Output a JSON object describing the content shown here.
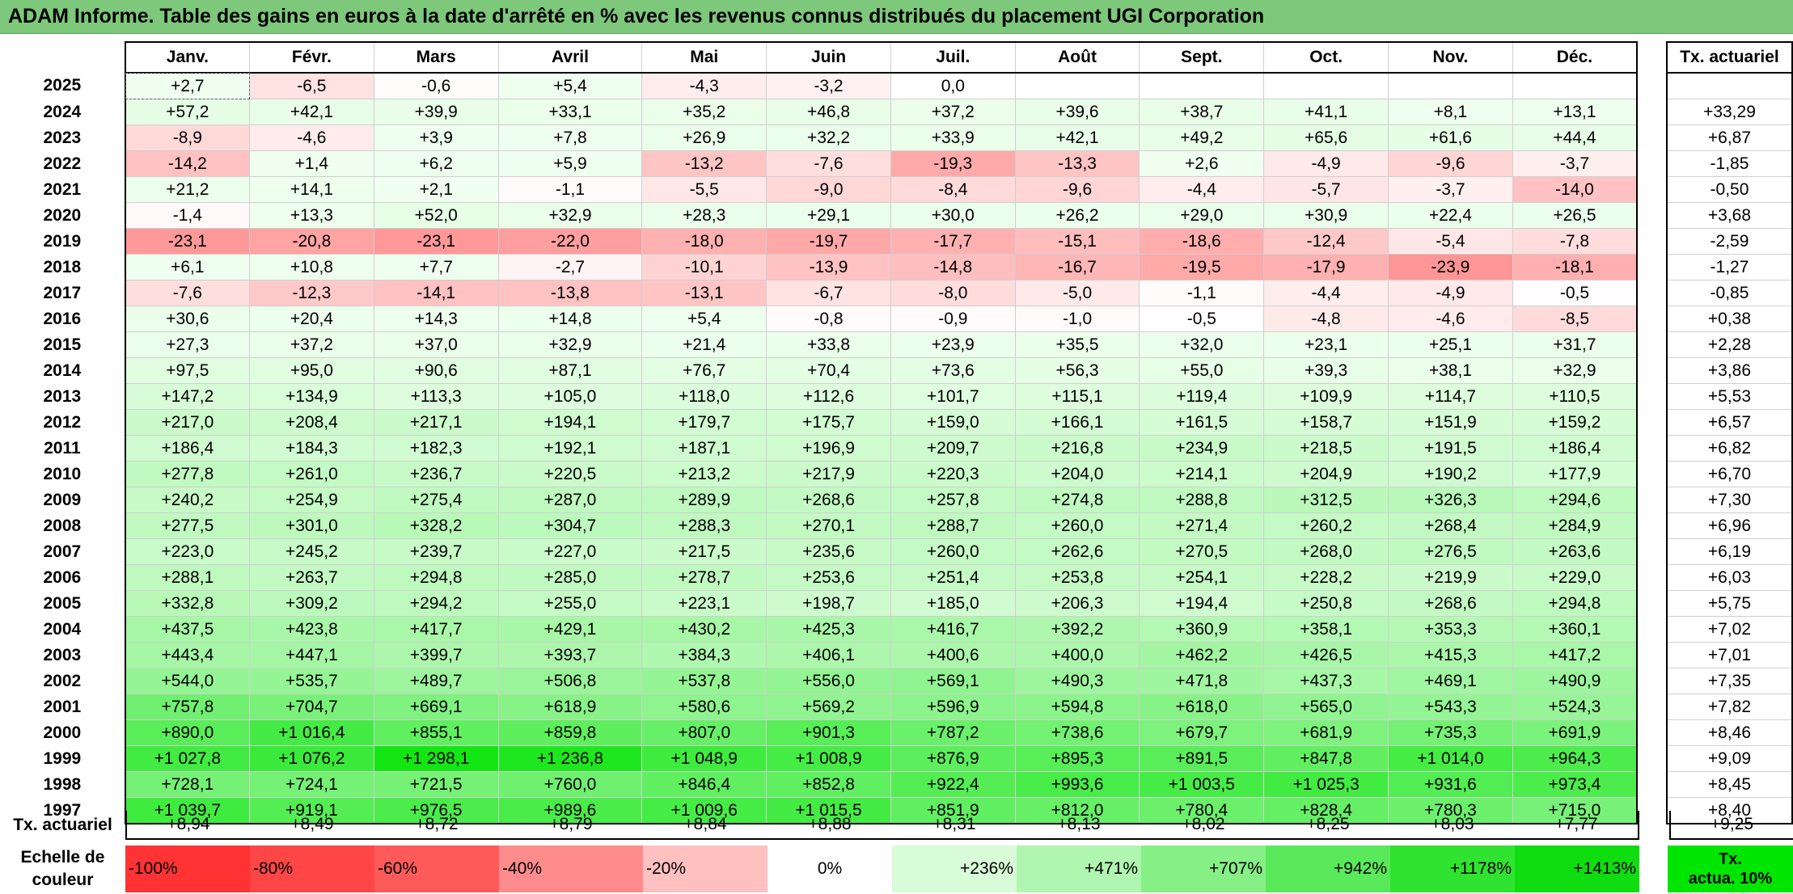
{
  "title": "ADAM Informe. Table des gains en euros à la date d'arrêté en % avec les revenus connus distribués du placement UGI Corporation",
  "months": [
    "Janv.",
    "Févr.",
    "Mars",
    "Avril",
    "Mai",
    "Juin",
    "Juil.",
    "Août",
    "Sept.",
    "Oct.",
    "Nov.",
    "Déc."
  ],
  "actu_header": "Tx. actuariel",
  "footer": {
    "label": "Tx. actuariel",
    "values": [
      "+8,94",
      "+8,49",
      "+8,72",
      "+8,79",
      "+8,84",
      "+8,88",
      "+8,31",
      "+8,13",
      "+8,02",
      "+8,25",
      "+8,03",
      "+7,77"
    ],
    "actu": "+9,25"
  },
  "scale": {
    "label_line1": "Echelle de",
    "label_line2": "couleur",
    "cells": [
      {
        "text": "-100%",
        "color": "#ff3333",
        "align": "left"
      },
      {
        "text": "-80%",
        "color": "#ff4646",
        "align": "left"
      },
      {
        "text": "-60%",
        "color": "#ff5a5a",
        "align": "left"
      },
      {
        "text": "-40%",
        "color": "#ff8c8c",
        "align": "left"
      },
      {
        "text": "-20%",
        "color": "#ffc0c0",
        "align": "left"
      },
      {
        "text": "0%",
        "color": "#ffffff",
        "align": "center"
      },
      {
        "text": "+236%",
        "color": "#d8fbd8",
        "align": "right"
      },
      {
        "text": "+471%",
        "color": "#b0f5b0",
        "align": "right"
      },
      {
        "text": "+707%",
        "color": "#86ef86",
        "align": "right"
      },
      {
        "text": "+942%",
        "color": "#5ae95a",
        "align": "right"
      },
      {
        "text": "+1178%",
        "color": "#30e330",
        "align": "right"
      },
      {
        "text": "+1413%",
        "color": "#10dd10",
        "align": "right"
      }
    ],
    "actu_line1": "Tx.",
    "actu_line2": "actua. 10%"
  },
  "chart_data": {
    "type": "heatmap",
    "title": "ADAM Informe. Table des gains en euros à la date d'arrêté en % avec les revenus connus distribués du placement UGI Corporation",
    "columns": [
      "Janv.",
      "Févr.",
      "Mars",
      "Avril",
      "Mai",
      "Juin",
      "Juil.",
      "Août",
      "Sept.",
      "Oct.",
      "Nov.",
      "Déc."
    ],
    "rows": [
      {
        "year": "2025",
        "values": [
          "+2,7",
          "-6,5",
          "-0,6",
          "+5,4",
          "-4,3",
          "-3,2",
          "0,0",
          "",
          "",
          "",
          "",
          ""
        ],
        "actu": ""
      },
      {
        "year": "2024",
        "values": [
          "+57,2",
          "+42,1",
          "+39,9",
          "+33,1",
          "+35,2",
          "+46,8",
          "+37,2",
          "+39,6",
          "+38,7",
          "+41,1",
          "+8,1",
          "+13,1"
        ],
        "actu": "+33,29"
      },
      {
        "year": "2023",
        "values": [
          "-8,9",
          "-4,6",
          "+3,9",
          "+7,8",
          "+26,9",
          "+32,2",
          "+33,9",
          "+42,1",
          "+49,2",
          "+65,6",
          "+61,6",
          "+44,4"
        ],
        "actu": "+6,87"
      },
      {
        "year": "2022",
        "values": [
          "-14,2",
          "+1,4",
          "+6,2",
          "+5,9",
          "-13,2",
          "-7,6",
          "-19,3",
          "-13,3",
          "+2,6",
          "-4,9",
          "-9,6",
          "-3,7"
        ],
        "actu": "-1,85"
      },
      {
        "year": "2021",
        "values": [
          "+21,2",
          "+14,1",
          "+2,1",
          "-1,1",
          "-5,5",
          "-9,0",
          "-8,4",
          "-9,6",
          "-4,4",
          "-5,7",
          "-3,7",
          "-14,0"
        ],
        "actu": "-0,50"
      },
      {
        "year": "2020",
        "values": [
          "-1,4",
          "+13,3",
          "+52,0",
          "+32,9",
          "+28,3",
          "+29,1",
          "+30,0",
          "+26,2",
          "+29,0",
          "+30,9",
          "+22,4",
          "+26,5"
        ],
        "actu": "+3,68"
      },
      {
        "year": "2019",
        "values": [
          "-23,1",
          "-20,8",
          "-23,1",
          "-22,0",
          "-18,0",
          "-19,7",
          "-17,7",
          "-15,1",
          "-18,6",
          "-12,4",
          "-5,4",
          "-7,8"
        ],
        "actu": "-2,59"
      },
      {
        "year": "2018",
        "values": [
          "+6,1",
          "+10,8",
          "+7,7",
          "-2,7",
          "-10,1",
          "-13,9",
          "-14,8",
          "-16,7",
          "-19,5",
          "-17,9",
          "-23,9",
          "-18,1"
        ],
        "actu": "-1,27"
      },
      {
        "year": "2017",
        "values": [
          "-7,6",
          "-12,3",
          "-14,1",
          "-13,8",
          "-13,1",
          "-6,7",
          "-8,0",
          "-5,0",
          "-1,1",
          "-4,4",
          "-4,9",
          "-0,5"
        ],
        "actu": "-0,85"
      },
      {
        "year": "2016",
        "values": [
          "+30,6",
          "+20,4",
          "+14,3",
          "+14,8",
          "+5,4",
          "-0,8",
          "-0,9",
          "-1,0",
          "-0,5",
          "-4,8",
          "-4,6",
          "-8,5"
        ],
        "actu": "+0,38"
      },
      {
        "year": "2015",
        "values": [
          "+27,3",
          "+37,2",
          "+37,0",
          "+32,9",
          "+21,4",
          "+33,8",
          "+23,9",
          "+35,5",
          "+32,0",
          "+23,1",
          "+25,1",
          "+31,7"
        ],
        "actu": "+2,28"
      },
      {
        "year": "2014",
        "values": [
          "+97,5",
          "+95,0",
          "+90,6",
          "+87,1",
          "+76,7",
          "+70,4",
          "+73,6",
          "+56,3",
          "+55,0",
          "+39,3",
          "+38,1",
          "+32,9"
        ],
        "actu": "+3,86"
      },
      {
        "year": "2013",
        "values": [
          "+147,2",
          "+134,9",
          "+113,3",
          "+105,0",
          "+118,0",
          "+112,6",
          "+101,7",
          "+115,1",
          "+119,4",
          "+109,9",
          "+114,7",
          "+110,5"
        ],
        "actu": "+5,53"
      },
      {
        "year": "2012",
        "values": [
          "+217,0",
          "+208,4",
          "+217,1",
          "+194,1",
          "+179,7",
          "+175,7",
          "+159,0",
          "+166,1",
          "+161,5",
          "+158,7",
          "+151,9",
          "+159,2"
        ],
        "actu": "+6,57"
      },
      {
        "year": "2011",
        "values": [
          "+186,4",
          "+184,3",
          "+182,3",
          "+192,1",
          "+187,1",
          "+196,9",
          "+209,7",
          "+216,8",
          "+234,9",
          "+218,5",
          "+191,5",
          "+186,4"
        ],
        "actu": "+6,82"
      },
      {
        "year": "2010",
        "values": [
          "+277,8",
          "+261,0",
          "+236,7",
          "+220,5",
          "+213,2",
          "+217,9",
          "+220,3",
          "+204,0",
          "+214,1",
          "+204,9",
          "+190,2",
          "+177,9"
        ],
        "actu": "+6,70"
      },
      {
        "year": "2009",
        "values": [
          "+240,2",
          "+254,9",
          "+275,4",
          "+287,0",
          "+289,9",
          "+268,6",
          "+257,8",
          "+274,8",
          "+288,8",
          "+312,5",
          "+326,3",
          "+294,6"
        ],
        "actu": "+7,30"
      },
      {
        "year": "2008",
        "values": [
          "+277,5",
          "+301,0",
          "+328,2",
          "+304,7",
          "+288,3",
          "+270,1",
          "+288,7",
          "+260,0",
          "+271,4",
          "+260,2",
          "+268,4",
          "+284,9"
        ],
        "actu": "+6,96"
      },
      {
        "year": "2007",
        "values": [
          "+223,0",
          "+245,2",
          "+239,7",
          "+227,0",
          "+217,5",
          "+235,6",
          "+260,0",
          "+262,6",
          "+270,5",
          "+268,0",
          "+276,5",
          "+263,6"
        ],
        "actu": "+6,19"
      },
      {
        "year": "2006",
        "values": [
          "+288,1",
          "+263,7",
          "+294,8",
          "+285,0",
          "+278,7",
          "+253,6",
          "+251,4",
          "+253,8",
          "+254,1",
          "+228,2",
          "+219,9",
          "+229,0"
        ],
        "actu": "+6,03"
      },
      {
        "year": "2005",
        "values": [
          "+332,8",
          "+309,2",
          "+294,2",
          "+255,0",
          "+223,1",
          "+198,7",
          "+185,0",
          "+206,3",
          "+194,4",
          "+250,8",
          "+268,6",
          "+294,8"
        ],
        "actu": "+5,75"
      },
      {
        "year": "2004",
        "values": [
          "+437,5",
          "+423,8",
          "+417,7",
          "+429,1",
          "+430,2",
          "+425,3",
          "+416,7",
          "+392,2",
          "+360,9",
          "+358,1",
          "+353,3",
          "+360,1"
        ],
        "actu": "+7,02"
      },
      {
        "year": "2003",
        "values": [
          "+443,4",
          "+447,1",
          "+399,7",
          "+393,7",
          "+384,3",
          "+406,1",
          "+400,6",
          "+400,0",
          "+462,2",
          "+426,5",
          "+415,3",
          "+417,2"
        ],
        "actu": "+7,01"
      },
      {
        "year": "2002",
        "values": [
          "+544,0",
          "+535,7",
          "+489,7",
          "+506,8",
          "+537,8",
          "+556,0",
          "+569,1",
          "+490,3",
          "+471,8",
          "+437,3",
          "+469,1",
          "+490,9"
        ],
        "actu": "+7,35"
      },
      {
        "year": "2001",
        "values": [
          "+757,8",
          "+704,7",
          "+669,1",
          "+618,9",
          "+580,6",
          "+569,2",
          "+596,9",
          "+594,8",
          "+618,0",
          "+565,0",
          "+543,3",
          "+524,3"
        ],
        "actu": "+7,82"
      },
      {
        "year": "2000",
        "values": [
          "+890,0",
          "+1 016,4",
          "+855,1",
          "+859,8",
          "+807,0",
          "+901,3",
          "+787,2",
          "+738,6",
          "+679,7",
          "+681,9",
          "+735,3",
          "+691,9"
        ],
        "actu": "+8,46"
      },
      {
        "year": "1999",
        "values": [
          "+1 027,8",
          "+1 076,2",
          "+1 298,1",
          "+1 236,8",
          "+1 048,9",
          "+1 008,9",
          "+876,9",
          "+895,3",
          "+891,5",
          "+847,8",
          "+1 014,0",
          "+964,3"
        ],
        "actu": "+9,09"
      },
      {
        "year": "1998",
        "values": [
          "+728,1",
          "+724,1",
          "+721,5",
          "+760,0",
          "+846,4",
          "+852,8",
          "+922,4",
          "+993,6",
          "+1 003,5",
          "+1 025,3",
          "+931,6",
          "+973,4"
        ],
        "actu": "+8,45"
      },
      {
        "year": "1997",
        "values": [
          "+1 039,7",
          "+919,1",
          "+976,5",
          "+989,6",
          "+1 009,6",
          "+1 015,5",
          "+851,9",
          "+812,0",
          "+780,4",
          "+828,4",
          "+780,3",
          "+715,0"
        ],
        "actu": "+8,40"
      }
    ]
  }
}
